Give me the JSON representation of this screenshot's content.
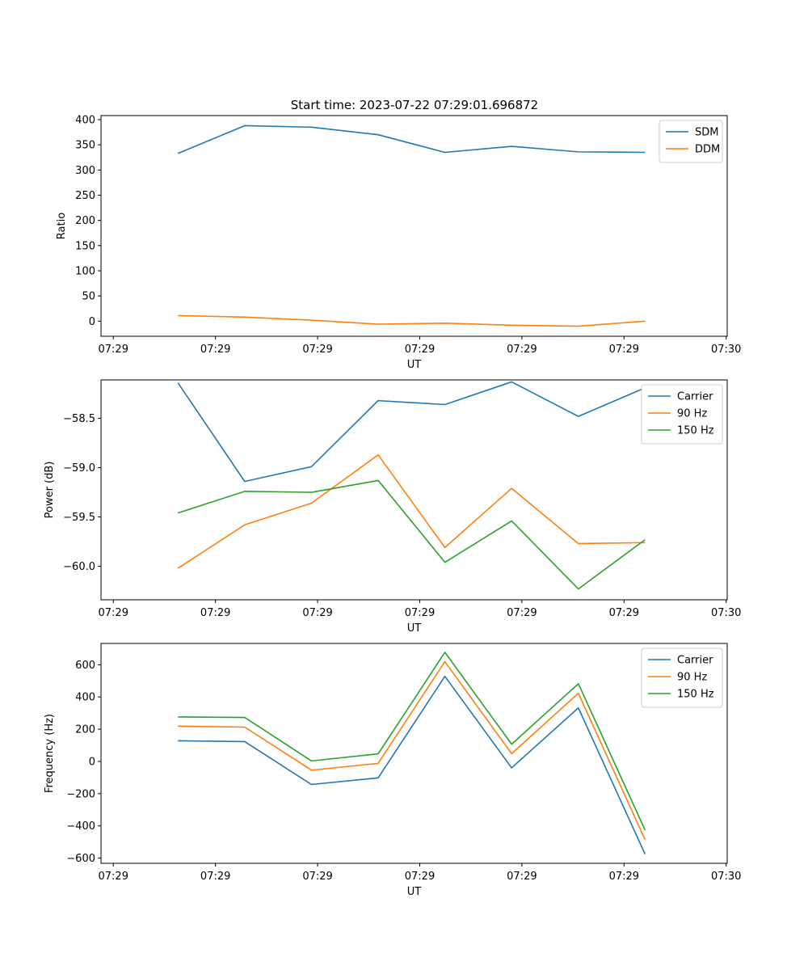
{
  "figure": {
    "title": "Start time: 2023-07-22 07:29:01.696872"
  },
  "chart_data": [
    {
      "type": "line",
      "title": "Start time: 2023-07-22 07:29:01.696872",
      "xlabel": "UT",
      "ylabel": "Ratio",
      "x": [
        0.75,
        1.4,
        2.05,
        2.7,
        3.35,
        4.0,
        4.65,
        5.3
      ],
      "xlim": [
        0.0,
        6.1
      ],
      "x_ticks": [
        0.12,
        1.115,
        2.11,
        3.105,
        4.1,
        5.095,
        6.09
      ],
      "x_tick_labels": [
        "07:29",
        "07:29",
        "07:29",
        "07:29",
        "07:29",
        "07:29",
        "07:30"
      ],
      "ylim": [
        -30,
        408
      ],
      "y_ticks": [
        0,
        50,
        100,
        150,
        200,
        250,
        300,
        350,
        400
      ],
      "y_tick_labels": [
        "0",
        "50",
        "100",
        "150",
        "200",
        "250",
        "300",
        "350",
        "400"
      ],
      "legend": "top-right",
      "series": [
        {
          "name": "SDM",
          "color": "#1f77b4",
          "values": [
            333,
            388,
            385,
            370,
            335,
            347,
            336,
            335
          ]
        },
        {
          "name": "DDM",
          "color": "#ff7f0e",
          "values": [
            11,
            8,
            2,
            -6,
            -4,
            -8,
            -10,
            0
          ]
        }
      ]
    },
    {
      "type": "line",
      "title": "",
      "xlabel": "UT",
      "ylabel": "Power (dB)",
      "x": [
        0.75,
        1.4,
        2.05,
        2.7,
        3.35,
        4.0,
        4.65,
        5.3
      ],
      "xlim": [
        0.0,
        6.1
      ],
      "x_ticks": [
        0.12,
        1.115,
        2.11,
        3.105,
        4.1,
        5.095,
        6.09
      ],
      "x_tick_labels": [
        "07:29",
        "07:29",
        "07:29",
        "07:29",
        "07:29",
        "07:29",
        "07:30"
      ],
      "ylim": [
        -60.34,
        -58.11
      ],
      "y_ticks": [
        -60.0,
        -59.5,
        -59.0,
        -58.5
      ],
      "y_tick_labels": [
        "−60.0",
        "−59.5",
        "−59.0",
        "−58.5"
      ],
      "legend": "top-right",
      "series": [
        {
          "name": "Carrier",
          "color": "#1f77b4",
          "values": [
            -58.14,
            -59.14,
            -58.99,
            -58.32,
            -58.36,
            -58.13,
            -58.48,
            -58.19
          ]
        },
        {
          "name": "90 Hz",
          "color": "#ff7f0e",
          "values": [
            -60.02,
            -59.58,
            -59.36,
            -58.87,
            -59.81,
            -59.21,
            -59.77,
            -59.76
          ]
        },
        {
          "name": "150 Hz",
          "color": "#2ca02c",
          "values": [
            -59.46,
            -59.24,
            -59.25,
            -59.13,
            -59.96,
            -59.54,
            -60.23,
            -59.73
          ]
        }
      ]
    },
    {
      "type": "line",
      "title": "",
      "xlabel": "UT",
      "ylabel": "Frequency (Hz)",
      "x": [
        0.75,
        1.4,
        2.05,
        2.7,
        3.35,
        4.0,
        4.65,
        5.3
      ],
      "xlim": [
        0.0,
        6.1
      ],
      "x_ticks": [
        0.12,
        1.115,
        2.11,
        3.105,
        4.1,
        5.095,
        6.09
      ],
      "x_tick_labels": [
        "07:29",
        "07:29",
        "07:29",
        "07:29",
        "07:29",
        "07:29",
        "07:30"
      ],
      "ylim": [
        -632,
        732
      ],
      "y_ticks": [
        -600,
        -400,
        -200,
        0,
        200,
        400,
        600
      ],
      "y_tick_labels": [
        "−600",
        "−400",
        "−200",
        "0",
        "200",
        "400",
        "600"
      ],
      "legend": "top-right",
      "series": [
        {
          "name": "Carrier",
          "color": "#1f77b4",
          "values": [
            128,
            123,
            -143,
            -102,
            528,
            -40,
            332,
            -575
          ]
        },
        {
          "name": "90 Hz",
          "color": "#ff7f0e",
          "values": [
            219,
            213,
            -54,
            -12,
            619,
            48,
            423,
            -485
          ]
        },
        {
          "name": "150 Hz",
          "color": "#2ca02c",
          "values": [
            276,
            273,
            3,
            47,
            677,
            107,
            482,
            -426
          ]
        }
      ]
    }
  ]
}
